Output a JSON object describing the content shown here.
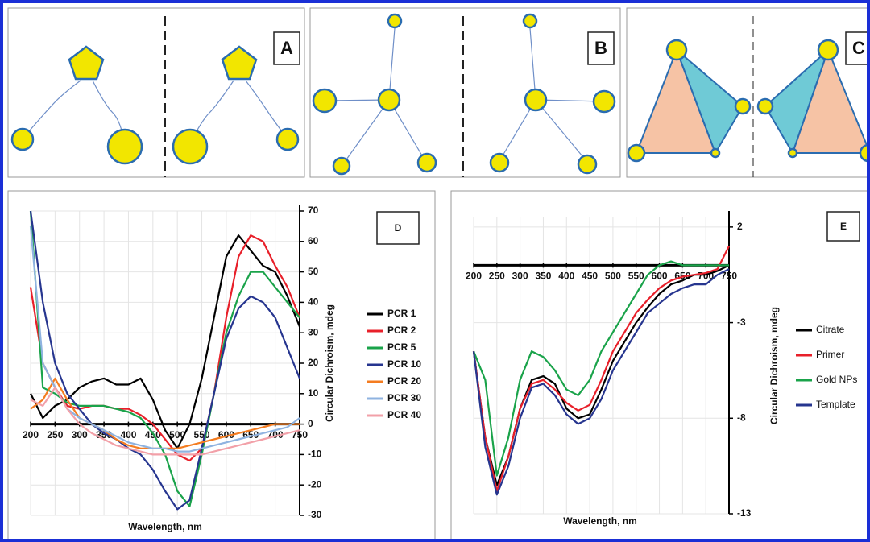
{
  "panels": [
    {
      "label": "A"
    },
    {
      "label": "B"
    },
    {
      "label": "C"
    }
  ],
  "chart_data": [
    {
      "type": "line",
      "panel_label": "D",
      "x_label": "Wavelength, nm",
      "y_label": "Circular Dichroism, mdeg",
      "x": [
        200,
        225,
        250,
        275,
        300,
        325,
        350,
        375,
        400,
        425,
        450,
        475,
        500,
        525,
        550,
        575,
        600,
        625,
        650,
        675,
        700,
        725,
        750
      ],
      "xlim": [
        200,
        750
      ],
      "xticks": [
        200,
        250,
        300,
        350,
        400,
        450,
        500,
        550,
        600,
        650,
        700,
        750
      ],
      "ylim": [
        -30,
        70
      ],
      "yticks": [
        -30,
        -20,
        -10,
        0,
        10,
        20,
        30,
        40,
        50,
        60,
        70
      ],
      "grid": true,
      "series": [
        {
          "name": "PCR 1",
          "color": "#000000",
          "values": [
            10,
            2,
            6,
            8,
            12,
            14,
            15,
            13,
            13,
            15,
            8,
            -2,
            -8,
            0,
            15,
            35,
            55,
            62,
            57,
            52,
            50,
            42,
            32
          ]
        },
        {
          "name": "PCR 2",
          "color": "#e8202a",
          "values": [
            45,
            20,
            12,
            6,
            5,
            6,
            6,
            5,
            5,
            3,
            0,
            -5,
            -10,
            -12,
            -8,
            10,
            35,
            55,
            62,
            60,
            52,
            45,
            35
          ]
        },
        {
          "name": "PCR 5",
          "color": "#1aa34a",
          "values": [
            70,
            12,
            10,
            7,
            6,
            6,
            6,
            5,
            4,
            2,
            -3,
            -10,
            -22,
            -27,
            -10,
            10,
            30,
            42,
            50,
            50,
            45,
            40,
            35
          ]
        },
        {
          "name": "PCR 10",
          "color": "#26358f",
          "values": [
            70,
            40,
            20,
            10,
            5,
            0,
            -3,
            -5,
            -8,
            -10,
            -15,
            -22,
            -28,
            -25,
            -8,
            10,
            28,
            38,
            42,
            40,
            35,
            25,
            15
          ]
        },
        {
          "name": "PCR 20",
          "color": "#f47c20",
          "values": [
            5,
            8,
            15,
            8,
            2,
            0,
            -2,
            -5,
            -7,
            -8,
            -8,
            -8,
            -8,
            -7,
            -6,
            -5,
            -4,
            -3,
            -2,
            -1,
            0,
            0,
            0
          ]
        },
        {
          "name": "PCR 30",
          "color": "#8fb3e0",
          "values": [
            65,
            20,
            12,
            5,
            2,
            0,
            -2,
            -4,
            -6,
            -7,
            -8,
            -8,
            -9,
            -9,
            -8,
            -7,
            -6,
            -5,
            -4,
            -3,
            -2,
            -1,
            2
          ]
        },
        {
          "name": "PCR 40",
          "color": "#f2a0a8",
          "values": [
            8,
            6,
            12,
            5,
            0,
            -3,
            -5,
            -7,
            -8,
            -9,
            -10,
            -10,
            -10,
            -10,
            -10,
            -9,
            -8,
            -7,
            -6,
            -5,
            -4,
            -3,
            -2
          ]
        }
      ]
    },
    {
      "type": "line",
      "panel_label": "E",
      "x_label": "Wavelength, nm",
      "y_label": "Circular Dichroism, mdeg",
      "x": [
        200,
        225,
        250,
        275,
        300,
        325,
        350,
        375,
        400,
        425,
        450,
        475,
        500,
        525,
        550,
        575,
        600,
        625,
        650,
        675,
        700,
        725,
        750
      ],
      "xlim": [
        200,
        750
      ],
      "xticks": [
        200,
        250,
        300,
        350,
        400,
        450,
        500,
        550,
        600,
        650,
        700,
        750
      ],
      "ylim": [
        -13,
        2.5
      ],
      "yticks": [
        -13,
        -8,
        -3,
        2
      ],
      "grid": true,
      "series": [
        {
          "name": "Citrate",
          "color": "#000000",
          "values": [
            -4.5,
            -9,
            -11.5,
            -10,
            -7.5,
            -6,
            -5.8,
            -6.2,
            -7.5,
            -8,
            -7.8,
            -6.5,
            -5,
            -4,
            -3,
            -2.2,
            -1.5,
            -1,
            -0.8,
            -0.5,
            -0.5,
            -0.3,
            0
          ]
        },
        {
          "name": "Primer",
          "color": "#e8202a",
          "values": [
            -4.5,
            -9,
            -11.8,
            -10,
            -7.5,
            -6.2,
            -6,
            -6.5,
            -7.2,
            -7.6,
            -7.3,
            -6,
            -4.5,
            -3.5,
            -2.5,
            -1.8,
            -1.2,
            -0.8,
            -0.6,
            -0.5,
            -0.4,
            -0.2,
            1
          ]
        },
        {
          "name": "Gold NPs",
          "color": "#1aa34a",
          "values": [
            -4.5,
            -6,
            -11,
            -9,
            -6,
            -4.5,
            -4.8,
            -5.5,
            -6.5,
            -6.8,
            -6,
            -4.5,
            -3.5,
            -2.5,
            -1.5,
            -0.5,
            0,
            0.2,
            0,
            0,
            0,
            0,
            0
          ]
        },
        {
          "name": "Template",
          "color": "#26358f",
          "values": [
            -4.5,
            -9.5,
            -12,
            -10.5,
            -8,
            -6.4,
            -6.2,
            -6.8,
            -7.8,
            -8.3,
            -8,
            -7,
            -5.5,
            -4.5,
            -3.5,
            -2.5,
            -2,
            -1.5,
            -1.2,
            -1,
            -1,
            -0.5,
            -0.2
          ]
        }
      ]
    }
  ]
}
